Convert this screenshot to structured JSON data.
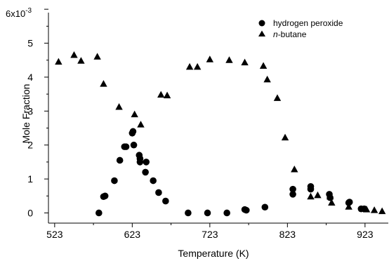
{
  "chart_data": {
    "type": "scatter",
    "xlabel": "Temperature (K)",
    "ylabel": "Mole Fraction",
    "y_exponent_label": "6x10",
    "y_exponent_power": "-3",
    "xlim": [
      515,
      953
    ],
    "ylim": [
      -0.0003,
      0.0059
    ],
    "x_ticks": [
      523,
      623,
      723,
      823,
      923
    ],
    "x_tick_labels": [
      "523",
      "623",
      "723",
      "823",
      "923"
    ],
    "y_ticks": [
      0,
      0.001,
      0.002,
      0.003,
      0.004,
      0.005
    ],
    "y_tick_labels": [
      "0",
      "1",
      "2",
      "3",
      "4",
      "5"
    ],
    "grid": false,
    "legend_position": "top-right",
    "series": [
      {
        "name": "hydrogen peroxide",
        "marker": "circle",
        "color": "#000000",
        "points": [
          [
            580,
            0.0
          ],
          [
            586,
            0.00048
          ],
          [
            588,
            0.0005
          ],
          [
            600,
            0.00095
          ],
          [
            607,
            0.00155
          ],
          [
            613,
            0.00195
          ],
          [
            615,
            0.00195
          ],
          [
            623,
            0.00235
          ],
          [
            624,
            0.0024
          ],
          [
            625,
            0.002
          ],
          [
            632,
            0.0017
          ],
          [
            633,
            0.0016
          ],
          [
            633,
            0.0015
          ],
          [
            641,
            0.0015
          ],
          [
            640,
            0.0012
          ],
          [
            650,
            0.00095
          ],
          [
            657,
            0.0006
          ],
          [
            666,
            0.00035
          ],
          [
            695,
            0.0
          ],
          [
            720,
            0.0
          ],
          [
            745,
            0.0
          ],
          [
            768,
            0.0001
          ],
          [
            770,
            8e-05
          ],
          [
            794,
            0.00017
          ],
          [
            830,
            0.0007
          ],
          [
            830,
            0.00055
          ],
          [
            853,
            0.00078
          ],
          [
            853,
            0.0007
          ],
          [
            877,
            0.00055
          ],
          [
            878,
            0.00045
          ],
          [
            902,
            0.0003
          ],
          [
            903,
            0.00032
          ],
          [
            918,
            0.00012
          ],
          [
            922,
            0.00012
          ]
        ]
      },
      {
        "name": "n-butane",
        "name_italic": "n",
        "name_rest": "-butane",
        "marker": "triangle",
        "color": "#000000",
        "points": [
          [
            528,
            0.00445
          ],
          [
            548,
            0.00465
          ],
          [
            557,
            0.00448
          ],
          [
            578,
            0.0046
          ],
          [
            586,
            0.0038
          ],
          [
            606,
            0.00312
          ],
          [
            626,
            0.0029
          ],
          [
            634,
            0.0026
          ],
          [
            660,
            0.00348
          ],
          [
            668,
            0.00346
          ],
          [
            697,
            0.0043
          ],
          [
            707,
            0.0043
          ],
          [
            723,
            0.00452
          ],
          [
            748,
            0.0045
          ],
          [
            768,
            0.00443
          ],
          [
            792,
            0.00433
          ],
          [
            797,
            0.00393
          ],
          [
            810,
            0.00338
          ],
          [
            820,
            0.00222
          ],
          [
            832,
            0.00128
          ],
          [
            853,
            0.00048
          ],
          [
            862,
            0.00052
          ],
          [
            878,
            0.00048
          ],
          [
            880,
            0.0003
          ],
          [
            902,
            0.00018
          ],
          [
            925,
            0.0001
          ],
          [
            935,
            8e-05
          ],
          [
            945,
            5e-05
          ]
        ]
      }
    ]
  }
}
